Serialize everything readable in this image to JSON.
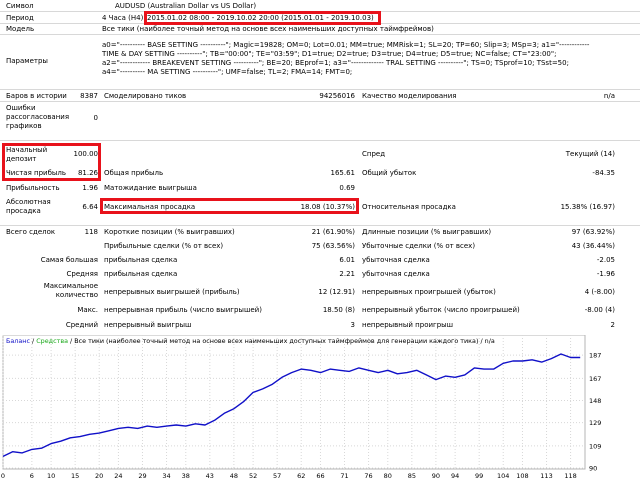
{
  "report": {
    "symbol_label": "Символ",
    "symbol_value": "AUDUSD (Australian Dollar vs US Dollar)",
    "period_label": "Период",
    "period_tf": "4 Часа (H4)",
    "period_value": "2015.01.02 08:00 - 2019.10.02 20:00 (2015.01.01 - 2019.10.03)",
    "model_label": "Модель",
    "model_value": "Все тики (наиболее точный метод на основе всех наименьших доступных таймфреймов)",
    "params_label": "Параметры",
    "params_lines": [
      "a0=\"---------- BASE SETTING ----------\"; Magic=19828; OM=0; Lot=0.01; MM=true; MMRisk=1; SL=20; TP=60; Slip=3; MSp=3; a1=\"------------",
      "TIME & DAY SETTING ----------\"; TB=\"00:00\"; TE=\"03:59\"; D1=true; D2=true; D3=true; D4=true; D5=true; NC=false; CT=\"23:00\";",
      "a2=\"------------ BREAKEVENT SETTING ----------\"; BE=20; BEprof=1; a3=\"------------- TRAL SETTING ----------\"; TS=0; TSprof=10; TSst=50;",
      "a4=\"---------- MA SETTING ----------\"; UMF=false; TL=2; FMA=14; FMT=0;"
    ],
    "bars_label": "Баров в истории",
    "bars_value": "8387",
    "ticks_label": "Смоделировано тиков",
    "ticks_value": "94256016",
    "quality_label": "Качество моделирования",
    "quality_value": "n/a",
    "mismatch_label": "Ошибки рассогласования графиков",
    "mismatch_value": "0",
    "deposit_label": "Начальный депозит",
    "deposit_value": "100.00",
    "spread_label": "Спред",
    "spread_value": "Текущий (14)",
    "netprofit_label": "Чистая прибыль",
    "netprofit_value": "81.26",
    "grossprofit_label": "Общая прибыль",
    "grossprofit_value": "165.61",
    "grossloss_label": "Общий убыток",
    "grossloss_value": "-84.35",
    "pf_label": "Прибыльность",
    "pf_value": "1.96",
    "expected_label": "Матожидание выигрыша",
    "expected_value": "0.69",
    "absdd_label": "Абсолютная просадка",
    "absdd_value": "6.64",
    "maxdd_label": "Максимальная просадка",
    "maxdd_value": "18.08 (10.37%)",
    "reldd_label": "Относительная просадка",
    "reldd_value": "15.38% (16.97)",
    "trades_label": "Всего сделок",
    "trades_value": "118",
    "short_label": "Короткие позиции (% выигравших)",
    "short_value": "21 (61.90%)",
    "long_label": "Длинные позиции (% выигравших)",
    "long_value": "97 (63.92%)",
    "profit_tr_label": "Прибыльные сделки (% от всех)",
    "profit_tr_value": "75 (63.56%)",
    "loss_tr_label": "Убыточные сделки (% от всех)",
    "loss_tr_value": "43 (36.44%)",
    "largest_label": "Самая большая",
    "largest_p_label": "прибыльная сделка",
    "largest_p_value": "6.01",
    "largest_l_label": "убыточная сделка",
    "largest_l_value": "-2.05",
    "avg_label": "Средняя",
    "avg_p_label": "прибыльная сделка",
    "avg_p_value": "2.21",
    "avg_l_label": "убыточная сделка",
    "avg_l_value": "-1.96",
    "maxcount_label": "Максимальное количество",
    "maxcount_w_label": "непрерывных выигрышей (прибыль)",
    "maxcount_w_value": "12 (12.91)",
    "maxcount_l_label": "непрерывных проигрышей (убыток)",
    "maxcount_l_value": "4 (-8.00)",
    "max_label": "Макс.",
    "max_w_label": "непрерывная прибыль (число выигрышей)",
    "max_w_value": "18.50 (8)",
    "max_l_label": "непрерывный убыток (число проигрышей)",
    "max_l_value": "-8.00 (4)",
    "avgcons_label": "Средний",
    "avgcons_w_label": "непрерывный выигрыш",
    "avgcons_w_value": "3",
    "avgcons_l_label": "непрерывный проигрыш",
    "avgcons_l_value": "2"
  },
  "chart_caption": {
    "balance": "Баланс",
    "sep": " / ",
    "funds": "Средства",
    "rest": " / Все тики (наиболее точный метод на основе всех наименьших доступных таймфреймов для генерации каждого тика) / n/a",
    "balance_color": "#1010c8",
    "funds_color": "#1aa81a"
  },
  "chart_data": {
    "type": "line",
    "title": "",
    "xlabel": "",
    "ylabel": "",
    "ylim": [
      90,
      194
    ],
    "xlim": [
      0,
      121
    ],
    "x_ticks": [
      0,
      6,
      10,
      15,
      20,
      24,
      29,
      34,
      38,
      43,
      48,
      52,
      57,
      62,
      66,
      71,
      76,
      80,
      85,
      90,
      94,
      99,
      104,
      108,
      113,
      118
    ],
    "y_ticks": [
      90,
      109,
      129,
      148,
      167,
      187
    ],
    "grid": true,
    "series": [
      {
        "name": "Баланс",
        "color": "#1010c8",
        "x": [
          0,
          2,
          4,
          6,
          8,
          10,
          12,
          14,
          16,
          18,
          20,
          22,
          24,
          26,
          28,
          30,
          32,
          34,
          36,
          38,
          40,
          42,
          44,
          46,
          48,
          50,
          52,
          54,
          56,
          58,
          60,
          62,
          64,
          66,
          68,
          70,
          72,
          74,
          76,
          78,
          80,
          82,
          84,
          86,
          88,
          90,
          92,
          94,
          96,
          98,
          100,
          102,
          104,
          106,
          108,
          110,
          112,
          114,
          116,
          118,
          120
        ],
        "y": [
          100,
          104,
          103,
          106,
          107,
          111,
          113,
          116,
          117,
          119,
          120,
          122,
          124,
          125,
          124,
          126,
          125,
          126,
          127,
          126,
          128,
          127,
          131,
          137,
          141,
          147,
          155,
          158,
          162,
          168,
          172,
          175,
          174,
          172,
          175,
          174,
          173,
          176,
          174,
          172,
          174,
          171,
          172,
          174,
          170,
          166,
          169,
          168,
          170,
          176,
          175,
          175,
          180,
          182,
          182,
          183,
          181,
          184,
          188,
          185,
          185
        ]
      }
    ]
  }
}
